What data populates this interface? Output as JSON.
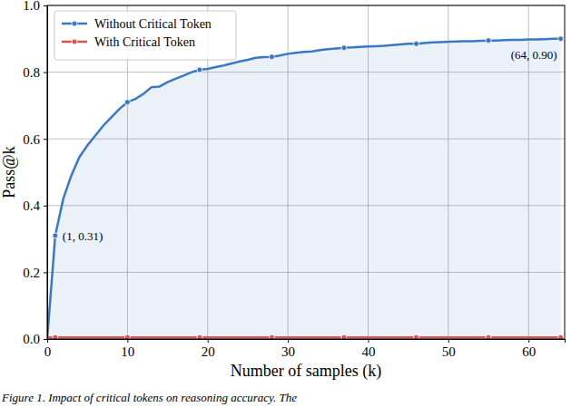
{
  "chart_data": {
    "type": "line",
    "x_label": "Number of samples (k)",
    "y_label": "Pass@k",
    "caption": "Figure 1. Impact of critical tokens on reasoning accuracy. The",
    "x": [
      0,
      1,
      2,
      3,
      4,
      5,
      6,
      7,
      8,
      9,
      10,
      11,
      12,
      13,
      14,
      15,
      16,
      17,
      18,
      19,
      20,
      21,
      22,
      23,
      24,
      25,
      26,
      27,
      28,
      29,
      30,
      31,
      32,
      33,
      34,
      35,
      36,
      37,
      38,
      39,
      40,
      41,
      42,
      43,
      44,
      45,
      46,
      47,
      48,
      49,
      50,
      51,
      52,
      53,
      54,
      55,
      56,
      57,
      58,
      59,
      60,
      61,
      62,
      63,
      64
    ],
    "series": [
      {
        "name": "Without Critical Token",
        "color": "#3a78c4",
        "type": "area",
        "marker": "circle",
        "values": [
          0,
          0.31,
          0.42,
          0.49,
          0.545,
          0.58,
          0.61,
          0.64,
          0.665,
          0.69,
          0.71,
          0.72,
          0.735,
          0.755,
          0.757,
          0.77,
          0.78,
          0.79,
          0.8,
          0.807,
          0.81,
          0.815,
          0.82,
          0.826,
          0.832,
          0.837,
          0.843,
          0.845,
          0.846,
          0.85,
          0.855,
          0.858,
          0.861,
          0.862,
          0.866,
          0.869,
          0.871,
          0.873,
          0.874,
          0.876,
          0.877,
          0.878,
          0.879,
          0.881,
          0.883,
          0.885,
          0.885,
          0.887,
          0.889,
          0.89,
          0.891,
          0.892,
          0.893,
          0.893,
          0.894,
          0.895,
          0.895,
          0.896,
          0.897,
          0.897,
          0.898,
          0.898,
          0.899,
          0.9,
          0.9
        ]
      },
      {
        "name": "With Critical Token",
        "color": "#d9534f",
        "type": "line",
        "marker": "circle",
        "values": [
          0.005,
          0.005,
          0.005,
          0.005,
          0.005,
          0.005,
          0.005,
          0.005,
          0.005,
          0.005,
          0.005,
          0.005,
          0.005,
          0.005,
          0.005,
          0.005,
          0.005,
          0.005,
          0.005,
          0.005,
          0.005,
          0.005,
          0.005,
          0.005,
          0.005,
          0.005,
          0.005,
          0.005,
          0.005,
          0.005,
          0.005,
          0.005,
          0.005,
          0.005,
          0.005,
          0.005,
          0.005,
          0.005,
          0.005,
          0.005,
          0.005,
          0.005,
          0.005,
          0.005,
          0.005,
          0.005,
          0.005,
          0.005,
          0.005,
          0.005,
          0.005,
          0.005,
          0.005,
          0.005,
          0.005,
          0.005,
          0.005,
          0.005,
          0.005,
          0.005,
          0.005,
          0.005,
          0.005,
          0.005,
          0.005
        ]
      }
    ],
    "annotations": [
      {
        "text": "(1, 0.31)",
        "x": 1,
        "y": 0.31
      },
      {
        "text": "(64, 0.90)",
        "x": 64,
        "y": 0.9
      }
    ],
    "xlim": [
      0,
      64.5
    ],
    "ylim": [
      0,
      1
    ],
    "xticks": [
      0,
      10,
      20,
      30,
      40,
      50,
      60
    ],
    "yticks": [
      {
        "value": 0,
        "label": "0.0"
      },
      0.2,
      0.4,
      0.6,
      0.8,
      {
        "value": 1,
        "label": "1.0"
      }
    ],
    "grid": true,
    "legend": "upper-left"
  }
}
